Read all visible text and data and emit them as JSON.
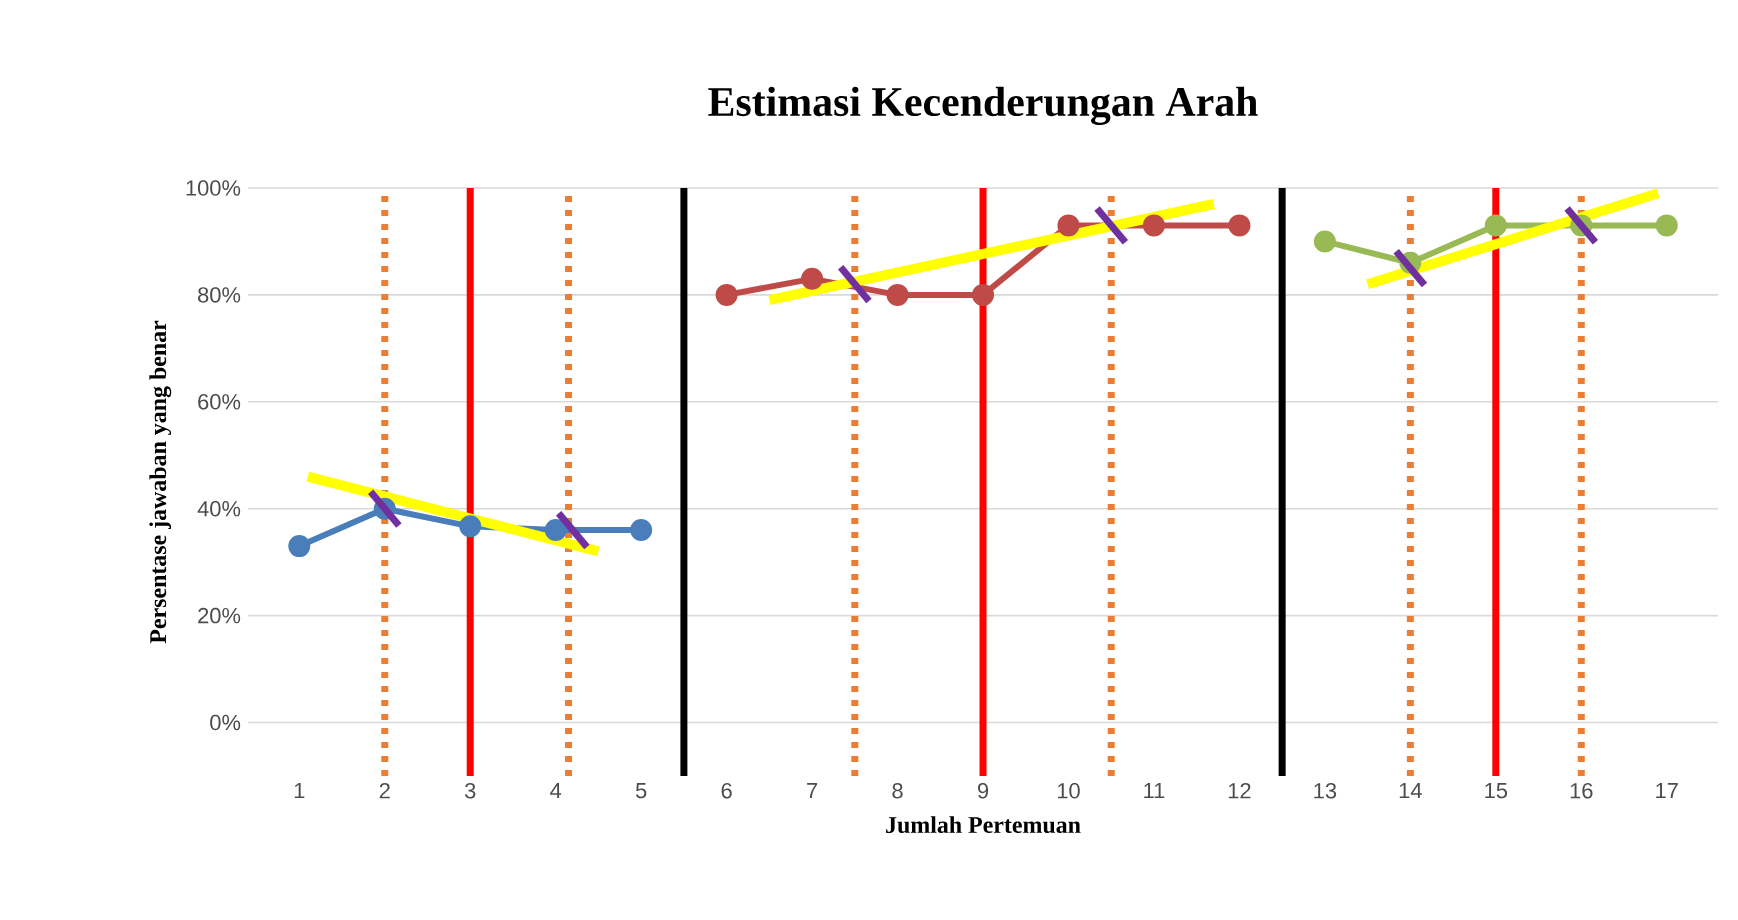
{
  "chart_data": {
    "type": "line",
    "title": "Estimasi Kecenderungan Arah",
    "xlabel": "Jumlah Pertemuan",
    "ylabel": "Persentase jawaban yang benar",
    "xlim": [
      0.4,
      17.6
    ],
    "xticks": [
      1,
      2,
      3,
      4,
      5,
      6,
      7,
      8,
      9,
      10,
      11,
      12,
      13,
      14,
      15,
      16,
      17
    ],
    "ylim": [
      -10,
      100
    ],
    "yticks": [
      {
        "value": 0,
        "label": "0%"
      },
      {
        "value": 20,
        "label": "20%"
      },
      {
        "value": 40,
        "label": "40%"
      },
      {
        "value": 60,
        "label": "60%"
      },
      {
        "value": 80,
        "label": "80%"
      },
      {
        "value": 100,
        "label": "100%"
      }
    ],
    "grid": "y",
    "marker": "circle",
    "series": [
      {
        "color": "#4a7ebb",
        "x": [
          1,
          2,
          3,
          4,
          5
        ],
        "values": [
          33,
          40,
          36.7,
          36,
          36
        ]
      },
      {
        "color": "#be4b48",
        "x": [
          6,
          7,
          8,
          9,
          10,
          11,
          12
        ],
        "values": [
          80,
          83,
          80,
          80,
          93,
          93,
          93
        ]
      },
      {
        "color": "#98b954",
        "x": [
          13,
          14,
          15,
          16,
          17
        ],
        "values": [
          90,
          86,
          93,
          93,
          93
        ]
      },
      {
        "type": "line",
        "color": "#ffff00",
        "marker": "none",
        "x": [
          1.1,
          4.5
        ],
        "values": [
          46,
          32
        ]
      },
      {
        "type": "line",
        "color": "#ffff00",
        "marker": "none",
        "x": [
          6.5,
          11.7
        ],
        "values": [
          79,
          97
        ]
      },
      {
        "type": "line",
        "color": "#ffff00",
        "marker": "none",
        "x": [
          13.5,
          16.9
        ],
        "values": [
          82,
          99
        ]
      },
      {
        "type": "scatter",
        "color": "#7030a0",
        "marker": "cross",
        "x": [
          2,
          4.2,
          7.5,
          10.5,
          14,
          16
        ],
        "values": [
          40,
          36,
          82,
          93,
          85,
          93
        ]
      }
    ],
    "ref_lines": [
      {
        "axis": "x",
        "value": 2,
        "color": "#ed7d31",
        "line_style": "dotted"
      },
      {
        "axis": "x",
        "value": 3,
        "color": "#ff0000",
        "line_style": "solid"
      },
      {
        "axis": "x",
        "value": 4.15,
        "color": "#ed7d31",
        "line_style": "dotted"
      },
      {
        "axis": "x",
        "value": 5.5,
        "color": "#000000",
        "line_style": "solid"
      },
      {
        "axis": "x",
        "value": 7.5,
        "color": "#ed7d31",
        "line_style": "dotted"
      },
      {
        "axis": "x",
        "value": 9,
        "color": "#ff0000",
        "line_style": "solid"
      },
      {
        "axis": "x",
        "value": 10.5,
        "color": "#ed7d31",
        "line_style": "dotted"
      },
      {
        "axis": "x",
        "value": 12.5,
        "color": "#000000",
        "line_style": "solid"
      },
      {
        "axis": "x",
        "value": 14,
        "color": "#ed7d31",
        "line_style": "dotted"
      },
      {
        "axis": "x",
        "value": 15,
        "color": "#ff0000",
        "line_style": "solid"
      },
      {
        "axis": "x",
        "value": 16,
        "color": "#ed7d31",
        "line_style": "dotted"
      }
    ]
  }
}
